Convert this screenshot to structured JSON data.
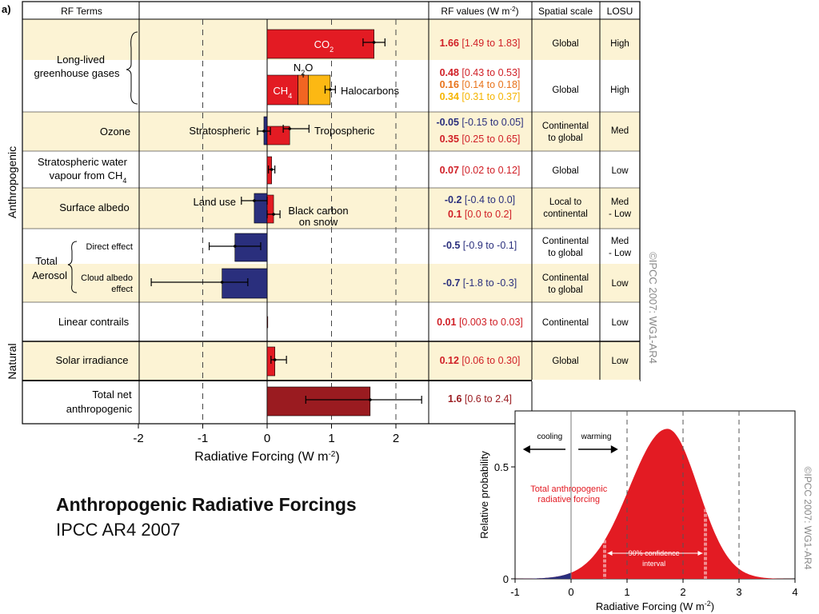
{
  "panel_label": "a)",
  "caption": {
    "title": "Anthropogenic Radiative Forcings",
    "subtitle": "IPCC AR4 2007"
  },
  "watermark": "©IPCC  2007:  WG1-AR4",
  "colors": {
    "band": "#fcf3d4",
    "red": "#e31b23",
    "orange": "#f26522",
    "yellow": "#fcb813",
    "blue": "#2a2f7d",
    "darkred": "#9a1b20",
    "textRed": "#d01f26",
    "textBlue": "#2a2f7d",
    "textOrange": "#e8731b",
    "textYellow": "#f5b400"
  },
  "table_headers": {
    "terms": "RF Terms",
    "values": "RF values (W m",
    "values_sup": "-2",
    "values_close": ")",
    "spatial": "Spatial scale",
    "losu": "LOSU"
  },
  "group_labels": {
    "anthropogenic": "Anthropogenic",
    "natural": "Natural",
    "long_lived_1": "Long-lived",
    "long_lived_2": "greenhouse gases",
    "total": "Total",
    "aerosol": "Aerosol"
  },
  "bar_labels": {
    "co2": "CO",
    "co2_sub": "2",
    "ch4": "CH",
    "ch4_sub": "4",
    "n2o": "N",
    "n2o_sub": "2",
    "n2o_end": "O",
    "halocarbons": "Halocarbons",
    "stratospheric": "Stratospheric",
    "tropospheric": "Tropospheric",
    "land_use": "Land use",
    "black_carbon_1": "Black carbon",
    "black_carbon_2": "on snow"
  },
  "axis": {
    "xlabel": "Radiative Forcing  (W m",
    "xlabel_sup": "-2",
    "xlabel_close": ")"
  },
  "chart_data": [
    {
      "type": "bar",
      "title": "",
      "xlabel": "Radiative Forcing  (W m-2)",
      "xlim": [
        -2,
        2.5
      ],
      "ticks": [
        "-2",
        "-1",
        "0",
        "1",
        "2"
      ],
      "grid": "dashed vertical at -1, 1, 2",
      "rows": [
        {
          "term": "CO2",
          "group": "Long-lived greenhouse gases",
          "segments": [
            {
              "name": "CO2",
              "value": 1.66
            }
          ],
          "range": [
            1.49,
            1.83
          ],
          "values": [
            {
              "best": "1.66",
              "range": "[1.49 to 1.83]",
              "color": "red"
            }
          ],
          "spatial": "Global",
          "losu": "High",
          "band": true
        },
        {
          "term": "CH4, N2O, Halocarbons",
          "group": "Long-lived greenhouse gases",
          "segments": [
            {
              "name": "CH4",
              "value": 0.48
            },
            {
              "name": "N2O",
              "value": 0.16
            },
            {
              "name": "Halocarbons",
              "value": 0.34
            }
          ],
          "range": [
            0.9,
            1.06
          ],
          "values": [
            {
              "best": "0.48",
              "range": "[0.43 to 0.53]",
              "color": "red"
            },
            {
              "best": "0.16",
              "range": "[0.14 to 0.18]",
              "color": "orange"
            },
            {
              "best": "0.34",
              "range": "[0.31 to 0.37]",
              "color": "yellow"
            }
          ],
          "spatial": "Global",
          "losu": "High",
          "band": false
        },
        {
          "term": "Ozone",
          "segments": [
            {
              "name": "Stratospheric",
              "value": -0.05
            },
            {
              "name": "Tropospheric",
              "value": 0.35
            }
          ],
          "range": [
            0.25,
            0.65
          ],
          "values": [
            {
              "best": "-0.05",
              "range": "[-0.15 to 0.05]",
              "color": "blue"
            },
            {
              "best": "0.35",
              "range": "[0.25 to 0.65]",
              "color": "red"
            }
          ],
          "spatial": "Continental to global",
          "losu": "Med",
          "band": true
        },
        {
          "term": "Stratospheric water vapour from CH4",
          "segments": [
            {
              "name": "H2O",
              "value": 0.07
            }
          ],
          "range": [
            0.02,
            0.12
          ],
          "values": [
            {
              "best": "0.07",
              "range": "[0.02 to 0.12]",
              "color": "red"
            }
          ],
          "spatial": "Global",
          "losu": "Low",
          "band": false
        },
        {
          "term": "Surface albedo",
          "segments": [
            {
              "name": "Land use",
              "value": -0.2
            },
            {
              "name": "Black carbon on snow",
              "value": 0.1
            }
          ],
          "range": [
            -0.4,
            0.2
          ],
          "values": [
            {
              "best": "-0.2",
              "range": "[-0.4 to 0.0]",
              "color": "blue"
            },
            {
              "best": "0.1",
              "range": "[0.0 to 0.2]",
              "color": "red"
            }
          ],
          "spatial": "Local to continental",
          "losu": "Med - Low",
          "band": true
        },
        {
          "term": "Direct effect",
          "group": "Total Aerosol",
          "segments": [
            {
              "name": "Direct effect",
              "value": -0.5
            }
          ],
          "range": [
            -0.9,
            -0.1
          ],
          "values": [
            {
              "best": "-0.5",
              "range": "[-0.9 to -0.1]",
              "color": "blue"
            }
          ],
          "spatial": "Continental to global",
          "losu": "Med - Low",
          "band": false
        },
        {
          "term": "Cloud albedo effect",
          "group": "Total Aerosol",
          "segments": [
            {
              "name": "Cloud albedo effect",
              "value": -0.7
            }
          ],
          "range": [
            -1.8,
            -0.3
          ],
          "values": [
            {
              "best": "-0.7",
              "range": "[-1.8 to -0.3]",
              "color": "blue"
            }
          ],
          "spatial": "Continental to global",
          "losu": "Low",
          "band": true
        },
        {
          "term": "Linear contrails",
          "segments": [
            {
              "name": "Linear contrails",
              "value": 0.01
            }
          ],
          "range": [
            0.003,
            0.03
          ],
          "values": [
            {
              "best": "0.01",
              "range": "[0.003 to 0.03]",
              "color": "red"
            }
          ],
          "spatial": "Continental",
          "losu": "Low",
          "band": false
        },
        {
          "term": "Solar irradiance",
          "group": "Natural",
          "segments": [
            {
              "name": "Solar irradiance",
              "value": 0.12
            }
          ],
          "range": [
            0.06,
            0.3
          ],
          "values": [
            {
              "best": "0.12",
              "range": "[0.06 to 0.30]",
              "color": "red"
            }
          ],
          "spatial": "Global",
          "losu": "Low",
          "band": true
        },
        {
          "term": "Total net anthropogenic",
          "segments": [
            {
              "name": "Total net anthropogenic",
              "value": 1.6
            }
          ],
          "range": [
            0.6,
            2.4
          ],
          "values": [
            {
              "best": "1.6",
              "range": "[0.6 to 2.4]",
              "color": "red"
            }
          ],
          "spatial": "",
          "losu": "",
          "band": false
        }
      ]
    },
    {
      "type": "area",
      "title": "",
      "xlabel": "Radiative Forcing  (W m-2)",
      "ylabel": "Relative probability",
      "xlim": [
        -1,
        4
      ],
      "ylim": [
        0,
        0.75
      ],
      "xticks": [
        "-1",
        "0",
        "1",
        "2",
        "3",
        "4"
      ],
      "yticks": [
        "0",
        "0.5"
      ],
      "series": [
        {
          "name": "Total anthropogenic radiative forcing",
          "mode": 1.72,
          "peak": 0.67
        }
      ],
      "confidence_interval": [
        0.6,
        2.4
      ],
      "annotations": {
        "cooling": "cooling",
        "warming": "warming",
        "series_label_1": "Total anthropogenic",
        "series_label_2": "radiative forcing",
        "ci_label_1": "90% confidence",
        "ci_label_2": "interval"
      }
    }
  ]
}
